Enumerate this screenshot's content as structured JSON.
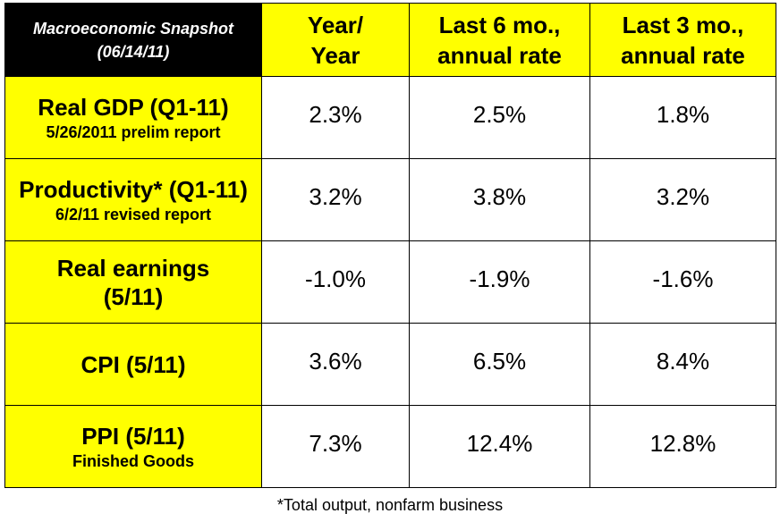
{
  "table": {
    "corner": [
      "Macroeconomic Snapshot",
      "(06/14/11)"
    ],
    "columns": [
      [
        "Year/",
        "Year"
      ],
      [
        "Last 6 mo.,",
        "annual rate"
      ],
      [
        "Last 3 mo.,",
        "annual rate"
      ]
    ],
    "rows": [
      {
        "label": [
          "Real GDP (Q1-11)"
        ],
        "sub": "5/26/2011 prelim report",
        "values": [
          "2.3%",
          "2.5%",
          "1.8%"
        ]
      },
      {
        "label": [
          "Productivity* (Q1-11)"
        ],
        "sub": "6/2/11 revised report",
        "values": [
          "3.2%",
          "3.8%",
          "3.2%"
        ]
      },
      {
        "label": [
          "Real earnings",
          "(5/11)"
        ],
        "sub": "",
        "values": [
          "-1.0%",
          "-1.9%",
          "-1.6%"
        ]
      },
      {
        "label": [
          "CPI (5/11)"
        ],
        "sub": "",
        "values": [
          "3.6%",
          "6.5%",
          "8.4%"
        ]
      },
      {
        "label": [
          "PPI (5/11)"
        ],
        "sub": "Finished Goods",
        "values": [
          "7.3%",
          "12.4%",
          "12.8%"
        ]
      }
    ]
  },
  "footnote": "*Total output, nonfarm business",
  "colors": {
    "header_yellow": "#ffff00",
    "corner_black": "#000000",
    "border": "#000000"
  }
}
